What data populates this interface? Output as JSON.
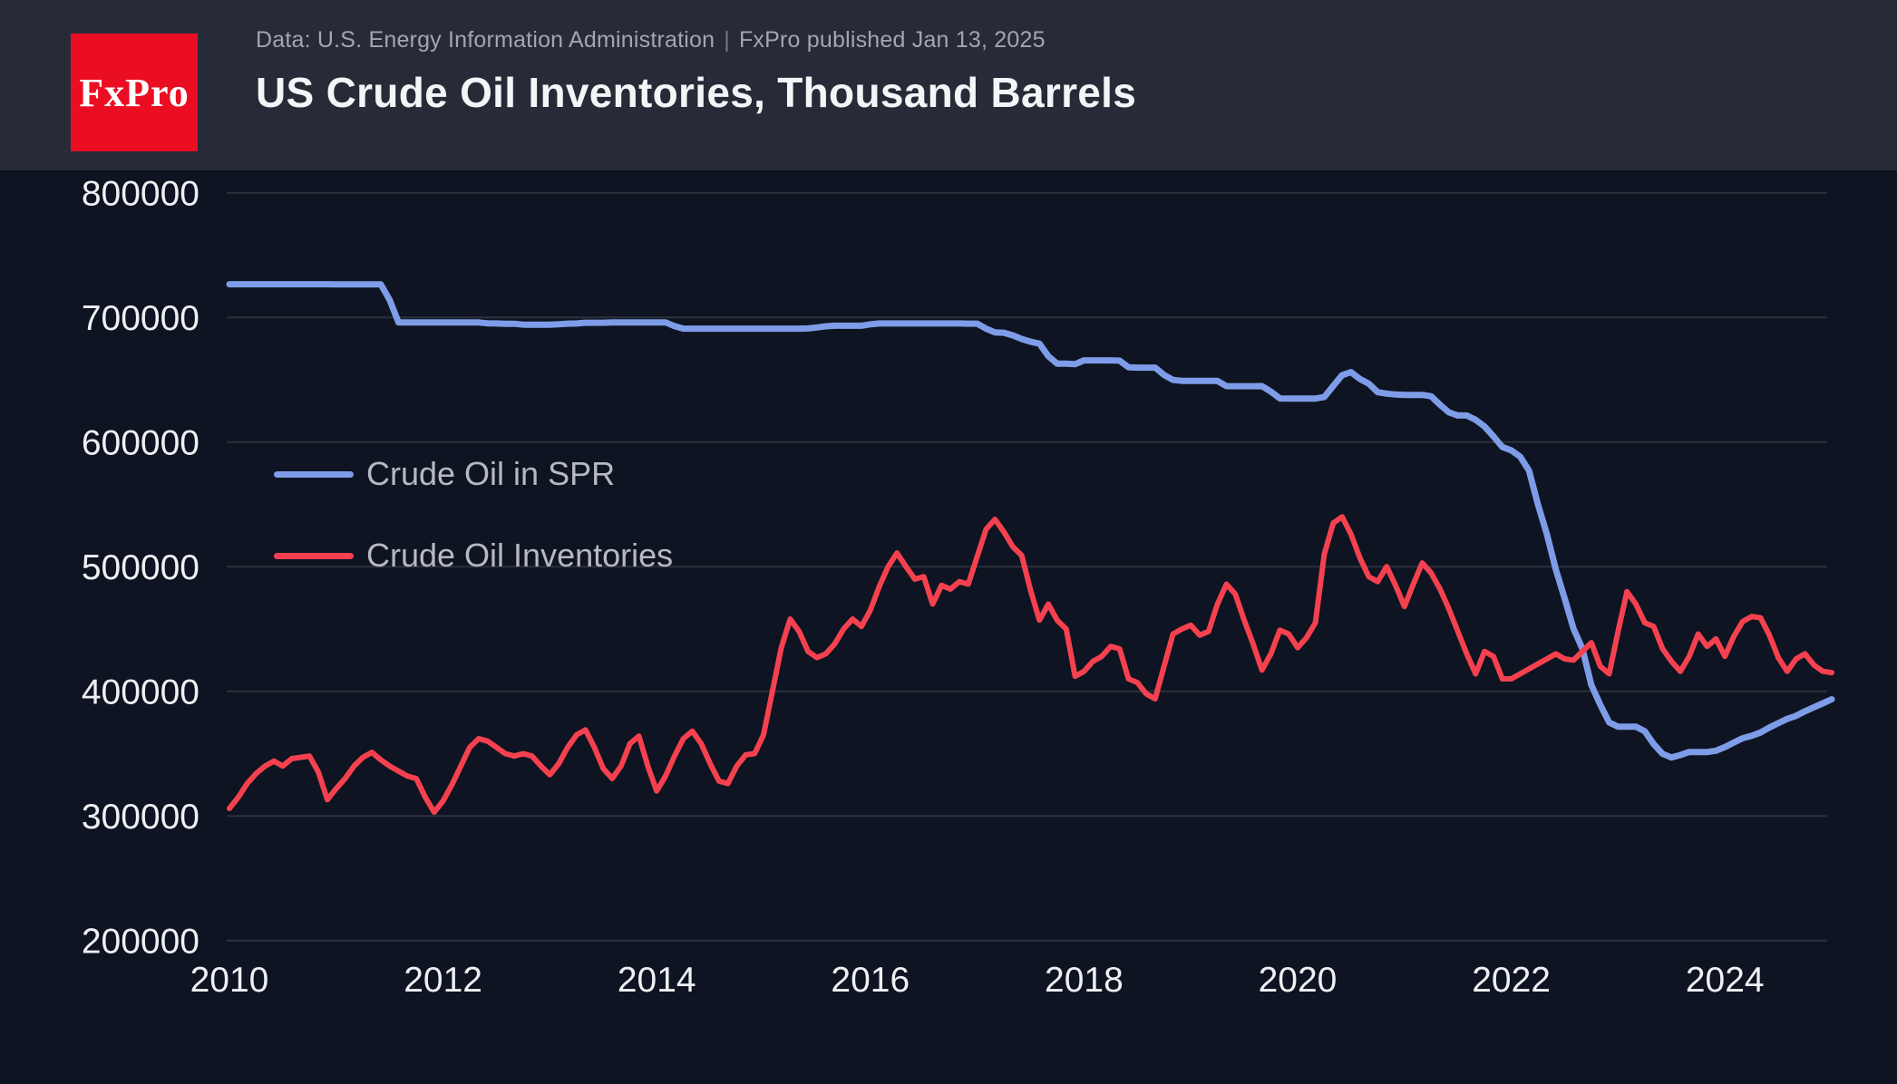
{
  "header": {
    "logo_text": "FxPro",
    "subtitle_source": "Data: U.S. Energy Information Administration",
    "subtitle_separator": "|",
    "subtitle_published": "FxPro published Jan 13, 2025",
    "title": "US Crude Oil Inventories, Thousand Barrels"
  },
  "colors": {
    "page_background": "#0e1421",
    "header_background": "#272b37",
    "logo_background": "#eb0e23",
    "gridline": "#2b303d",
    "axis_label": "#eef0f3",
    "legend_text": "#b6b9c1",
    "spr_line": "#7e9ce8",
    "inventories_line": "#f5414f"
  },
  "chart_data": {
    "type": "line",
    "title": "US Crude Oil Inventories, Thousand Barrels",
    "units": "thousand barrels",
    "grid": true,
    "legend_position": "upper-left",
    "x_axis": {
      "start_year": 2010.0,
      "step_years": 0.0833333,
      "tick_years": [
        2010,
        2012,
        2014,
        2016,
        2018,
        2020,
        2022,
        2024
      ]
    },
    "y_axis": {
      "min": 200000,
      "max": 800000,
      "ticks": [
        200000,
        300000,
        400000,
        500000,
        600000,
        700000,
        800000
      ]
    },
    "series": [
      {
        "name": "Crude Oil in SPR",
        "color": "#7e9ce8",
        "values": [
          726600,
          726600,
          726600,
          726600,
          726600,
          726600,
          726600,
          726600,
          726600,
          726600,
          726600,
          726600,
          726500,
          726500,
          726500,
          726500,
          726500,
          726500,
          714000,
          696000,
          695900,
          695900,
          695900,
          695900,
          695900,
          695900,
          695900,
          695900,
          695900,
          695300,
          695100,
          694900,
          694900,
          694200,
          694100,
          694100,
          694100,
          694500,
          695000,
          695100,
          695700,
          695700,
          695700,
          696000,
          696000,
          696000,
          696000,
          696000,
          696000,
          696000,
          693000,
          691000,
          691000,
          691000,
          691000,
          691000,
          691000,
          691000,
          691000,
          691000,
          691000,
          691000,
          691000,
          691000,
          691000,
          691100,
          691900,
          692900,
          693300,
          693300,
          693300,
          693300,
          694500,
          695100,
          695100,
          695100,
          695100,
          695100,
          695100,
          695100,
          695100,
          695100,
          695100,
          695000,
          695000,
          691000,
          688000,
          687700,
          685600,
          682700,
          680500,
          678900,
          668900,
          662800,
          662800,
          662500,
          665500,
          665500,
          665500,
          665500,
          665300,
          660000,
          659700,
          659700,
          659700,
          653800,
          649800,
          649100,
          649100,
          649100,
          649100,
          649000,
          644900,
          644800,
          644800,
          644800,
          644900,
          640400,
          635000,
          634900,
          634900,
          634900,
          634900,
          636100,
          645000,
          653700,
          656100,
          650600,
          646800,
          640000,
          638800,
          638100,
          637800,
          637800,
          637800,
          636700,
          629900,
          623800,
          621300,
          621300,
          617800,
          612500,
          604500,
          596000,
          593300,
          588300,
          577000,
          550000,
          526000,
          497900,
          474500,
          450100,
          434100,
          405100,
          389100,
          375000,
          371600,
          371600,
          371600,
          368000,
          357600,
          349800,
          346800,
          348900,
          351300,
          351300,
          351300,
          352300,
          355200,
          358800,
          362300,
          364200,
          366900,
          370900,
          374400,
          377800,
          380300,
          383900,
          387200,
          390300,
          393600
        ]
      },
      {
        "name": "Crude Oil Inventories",
        "color": "#f5414f",
        "values": [
          306000,
          315000,
          326000,
          334000,
          340000,
          344000,
          340000,
          346000,
          347000,
          348000,
          335000,
          313000,
          322000,
          330000,
          340000,
          347000,
          351000,
          345000,
          340000,
          336000,
          332000,
          330000,
          315000,
          303000,
          312000,
          325000,
          340000,
          355000,
          362000,
          360000,
          355000,
          350000,
          348000,
          350000,
          348000,
          340000,
          333000,
          342000,
          355000,
          365000,
          369000,
          355000,
          338000,
          330000,
          340000,
          358000,
          364000,
          340000,
          320000,
          332000,
          348000,
          362000,
          368000,
          358000,
          342000,
          328000,
          326000,
          340000,
          349000,
          350000,
          365000,
          400000,
          435000,
          458000,
          448000,
          432000,
          427000,
          430000,
          438000,
          450000,
          458000,
          452000,
          465000,
          484000,
          500000,
          511000,
          500000,
          490000,
          492000,
          470000,
          485000,
          482000,
          488000,
          486000,
          508000,
          530000,
          538000,
          528000,
          516000,
          509000,
          481000,
          457000,
          470000,
          457000,
          450000,
          412000,
          416000,
          424000,
          428000,
          436000,
          434000,
          410000,
          407000,
          398000,
          394000,
          420000,
          446000,
          450000,
          453000,
          445000,
          448000,
          470000,
          486000,
          478000,
          457000,
          438000,
          417000,
          430000,
          449000,
          446000,
          435000,
          443000,
          455000,
          510000,
          535000,
          540000,
          526000,
          507000,
          492000,
          488000,
          500000,
          485000,
          468000,
          486000,
          503000,
          495000,
          482000,
          466000,
          448000,
          430000,
          414000,
          432000,
          428000,
          410000,
          410000,
          414000,
          418000,
          422000,
          426000,
          430000,
          426000,
          425000,
          432000,
          439000,
          420000,
          414000,
          448000,
          480000,
          470000,
          455000,
          452000,
          434000,
          424000,
          416000,
          428000,
          446000,
          436000,
          442000,
          428000,
          444000,
          456000,
          460000,
          459000,
          445000,
          427000,
          416000,
          426000,
          430000,
          421000,
          416000,
          415000
        ]
      }
    ]
  }
}
